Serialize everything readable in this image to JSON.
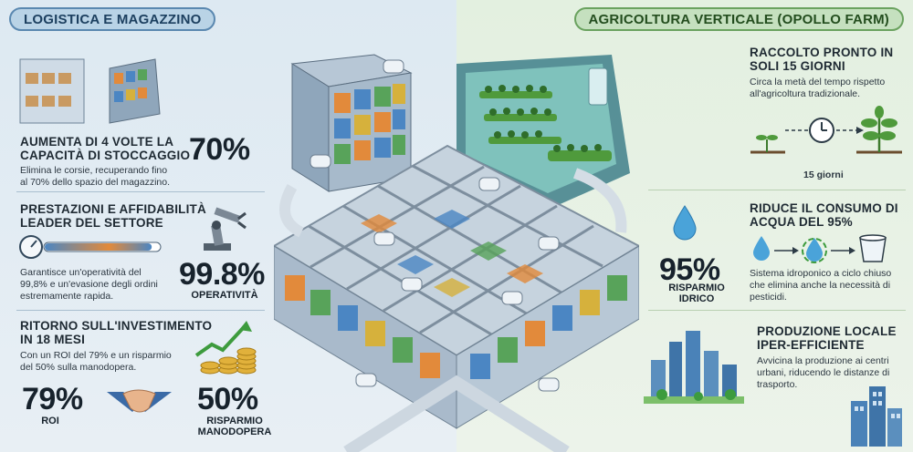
{
  "left": {
    "title": "LOGISTICA E MAGAZZINO",
    "s1": {
      "heading_l1": "AUMENTA DI 4 VOLTE LA",
      "heading_l2": "CAPACITÀ DI STOCCAGGIO",
      "stat": "70%",
      "desc_l1": "Elimina le corsie, recuperando fino",
      "desc_l2": "al 70% dello spazio del magazzino."
    },
    "s2": {
      "heading_l1": "PRESTAZIONI E AFFIDABILITÀ",
      "heading_l2": "LEADER DEL SETTORE",
      "stat": "99.8%",
      "stat_label": "OPERATIVITÀ",
      "desc_l1": "Garantisce un'operatività del",
      "desc_l2": "99,8% e un'evasione degli ordini",
      "desc_l3": "estremamente rapida."
    },
    "s3": {
      "heading_l1": "RITORNO SULL'INVESTIMENTO",
      "heading_l2": "IN 18 MESI",
      "desc_l1": "Con un ROI del 79% e un risparmio",
      "desc_l2": "del 50% sulla manodopera.",
      "stat_roi": "79%",
      "label_roi": "ROI",
      "stat_labor": "50%",
      "label_labor_l1": "RISPARMIO",
      "label_labor_l2": "MANODOPERA"
    }
  },
  "right": {
    "title": "AGRICOLTURA VERTICALE (OPOLLO FARM)",
    "s1": {
      "heading_l1": "RACCOLTO PRONTO IN",
      "heading_l2": "SOLI 15 GIORNI",
      "desc_l1": "Circa la metà del tempo rispetto",
      "desc_l2": "all'agricoltura tradizionale.",
      "caption": "15 giorni"
    },
    "s2": {
      "heading_l1": "RIDUCE IL CONSUMO DI",
      "heading_l2": "ACQUA DEL 95%",
      "stat": "95%",
      "stat_label_l1": "RISPARMIO",
      "stat_label_l2": "IDRICO",
      "desc_l1": "Sistema idroponico a ciclo chiuso",
      "desc_l2": "che elimina anche la necessità di",
      "desc_l3": "pesticidi."
    },
    "s3": {
      "heading_l1": "PRODUZIONE LOCALE",
      "heading_l2": "IPER-EFFICIENTE",
      "desc_l1": "Avvicina la produzione ai centri",
      "desc_l2": "urbani, riducendo le distanze di",
      "desc_l3": "trasporto."
    }
  },
  "colors": {
    "left_bg": "#dde9f2",
    "right_bg": "#e3f0e0",
    "left_accent": "#5a88b0",
    "right_accent": "#6aa25f"
  },
  "gauge": {
    "level": 0.93
  }
}
